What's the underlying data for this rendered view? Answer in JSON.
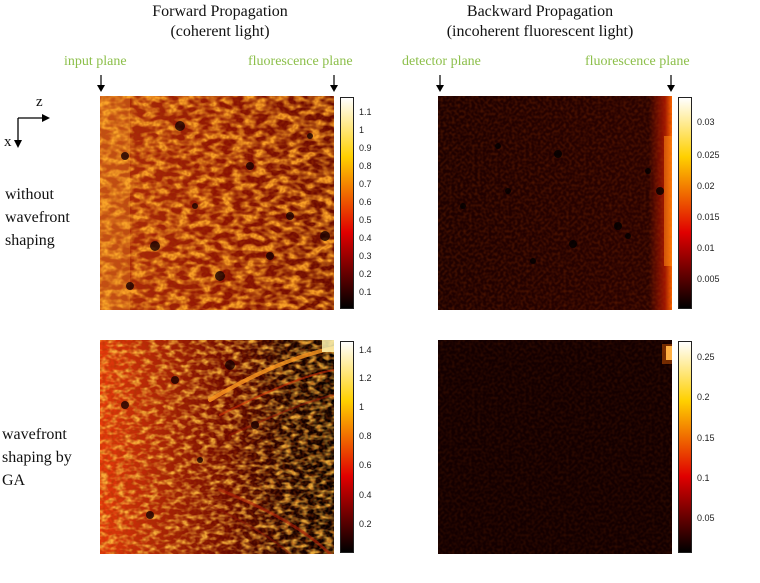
{
  "columns": [
    {
      "title": "Forward Propagation",
      "subtitle": "(coherent light)",
      "plane_left": "input plane",
      "plane_right": "fluorescence plane"
    },
    {
      "title": "Backward Propagation",
      "subtitle": "(incoherent fluorescent light)",
      "plane_left": "detector plane",
      "plane_right": "fluorescence plane"
    }
  ],
  "axes": {
    "z": "z",
    "x": "x"
  },
  "rows": [
    {
      "label_lines": [
        "without",
        "wavefront",
        "shaping"
      ]
    },
    {
      "label_lines": [
        "wavefront",
        "shaping by",
        "GA"
      ]
    }
  ],
  "colorbars": {
    "forward_without": [
      "1.1",
      "1",
      "0.9",
      "0.8",
      "0.7",
      "0.6",
      "0.5",
      "0.4",
      "0.3",
      "0.2",
      "0.1"
    ],
    "backward_without": [
      "0.03",
      "0.025",
      "0.02",
      "0.015",
      "0.01",
      "0.005"
    ],
    "forward_ga": [
      "1.4",
      "1.2",
      "1",
      "0.8",
      "0.6",
      "0.4",
      "0.2"
    ],
    "backward_ga": [
      "0.25",
      "0.2",
      "0.15",
      "0.1",
      "0.05"
    ]
  },
  "colors": {
    "plane_label": "#8cbf4a",
    "hot_low": "#000000",
    "hot_mid": "#cc1100",
    "hot_high": "#ffffff"
  }
}
